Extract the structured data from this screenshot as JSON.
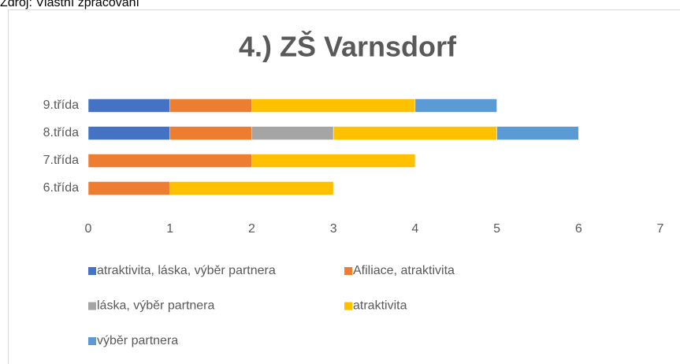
{
  "source": "Zdroj: Vlastní zpracování",
  "chart_data": {
    "type": "stacked-barh",
    "title": "4.) ZŠ Varnsdorf",
    "categories": [
      "6.třída",
      "7.třída",
      "8.třída",
      "9.třída"
    ],
    "series": [
      {
        "name": "atraktivita, láska, výběr partnera",
        "color": "#4472c4",
        "values": [
          0,
          0,
          1,
          1
        ]
      },
      {
        "name": "Afiliace, atraktivita",
        "color": "#ed7d31",
        "values": [
          1,
          2,
          1,
          1
        ]
      },
      {
        "name": "láska, výběr partnera",
        "color": "#a5a5a5",
        "values": [
          0,
          0,
          1,
          0
        ]
      },
      {
        "name": "atraktivita",
        "color": "#ffc000",
        "values": [
          2,
          2,
          2,
          2
        ]
      },
      {
        "name": "výběr partnera",
        "color": "#5b9bd5",
        "values": [
          0,
          0,
          1,
          1
        ]
      }
    ],
    "xlim": [
      0,
      7
    ],
    "xticks": [
      0,
      1,
      2,
      3,
      4,
      5,
      6,
      7
    ],
    "grid": false,
    "legend": "bottom"
  }
}
